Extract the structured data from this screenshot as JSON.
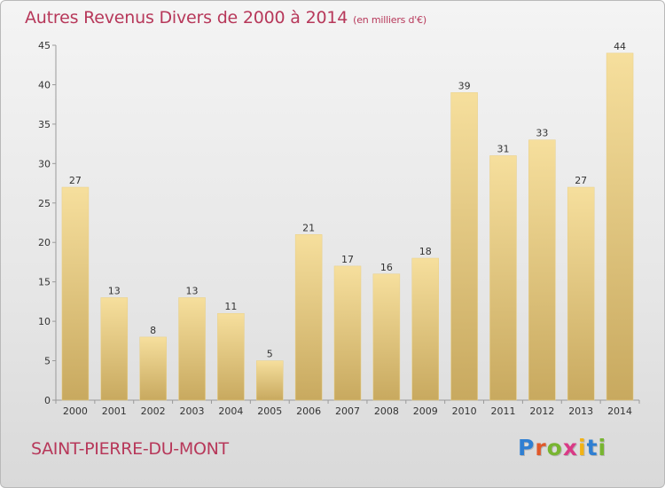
{
  "header": {
    "title": "Autres Revenus Divers de 2000 à 2014",
    "subtitle": "(en milliers d'€)"
  },
  "footer": {
    "town": "SAINT-PIERRE-DU-MONT",
    "logo_letters": [
      "P",
      "r",
      "o",
      "x",
      "i",
      "t",
      "i"
    ],
    "logo_colors": [
      "#2f7fd2",
      "#e0592a",
      "#78b531",
      "#d93a86",
      "#f2b315",
      "#2f7fd2",
      "#78b531"
    ]
  },
  "chart_data": {
    "type": "bar",
    "title": "Autres Revenus Divers de 2000 à 2014",
    "subtitle": "(en milliers d'€)",
    "categories": [
      "2000",
      "2001",
      "2002",
      "2003",
      "2004",
      "2005",
      "2006",
      "2007",
      "2008",
      "2009",
      "2010",
      "2011",
      "2012",
      "2013",
      "2014"
    ],
    "values": [
      27,
      13,
      8,
      13,
      11,
      5,
      21,
      17,
      16,
      18,
      39,
      31,
      33,
      27,
      44
    ],
    "ylim": [
      0,
      45
    ],
    "yticks": [
      0,
      5,
      10,
      15,
      20,
      25,
      30,
      35,
      40,
      45
    ],
    "grid": false,
    "bar_color_top": "#f6df9d",
    "bar_color_bottom": "#c8a95f"
  }
}
